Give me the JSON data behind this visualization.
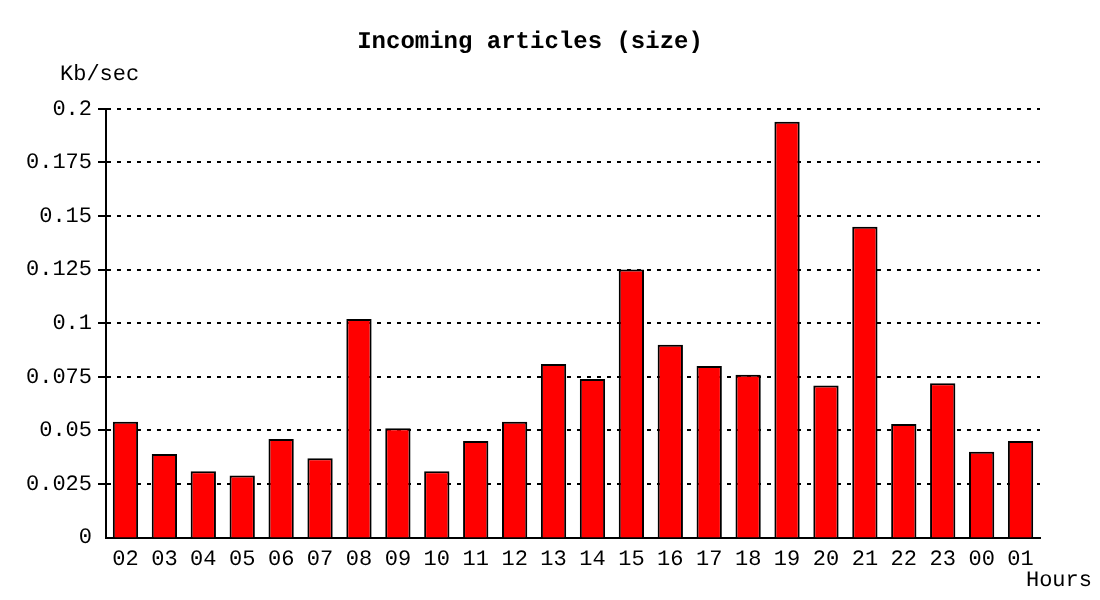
{
  "chart_data": {
    "type": "bar",
    "title": "Incoming articles (size)",
    "ylabel": "Kb/sec",
    "xlabel": "Hours",
    "categories": [
      "02",
      "03",
      "04",
      "05",
      "06",
      "07",
      "08",
      "09",
      "10",
      "11",
      "12",
      "13",
      "14",
      "15",
      "16",
      "17",
      "18",
      "19",
      "20",
      "21",
      "22",
      "23",
      "00",
      "01"
    ],
    "values": [
      0.054,
      0.039,
      0.031,
      0.029,
      0.046,
      0.037,
      0.102,
      0.051,
      0.031,
      0.045,
      0.054,
      0.081,
      0.074,
      0.125,
      0.09,
      0.08,
      0.076,
      0.194,
      0.071,
      0.145,
      0.053,
      0.072,
      0.04,
      0.045
    ],
    "color": "#ff0000",
    "ylim": [
      0,
      0.2
    ],
    "yticks": [
      0,
      0.025,
      0.05,
      0.075,
      0.1,
      0.125,
      0.15,
      0.175,
      0.2
    ],
    "grid": "y",
    "legend": false
  }
}
